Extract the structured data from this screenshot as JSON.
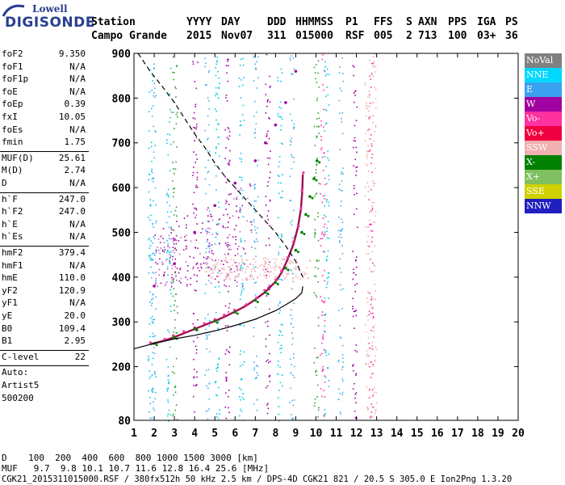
{
  "logo": {
    "line1": "Lowell",
    "line2": "DIGISONDE"
  },
  "header": {
    "labels": [
      "Station",
      "YYYY",
      "DAY",
      "DDD",
      "HHMMSS",
      "P1",
      "FFS",
      "S",
      "AXN",
      "PPS",
      "IGA",
      "PS"
    ],
    "values": [
      "Campo Grande",
      "2015",
      "Nov07",
      "311",
      "015000",
      "RSF",
      "005",
      "2",
      "713",
      "100",
      "03+",
      "36"
    ]
  },
  "params": {
    "group1": [
      [
        "foF2",
        "9.350"
      ],
      [
        "foF1",
        "N/A"
      ],
      [
        "foF1p",
        "N/A"
      ],
      [
        "foE",
        "N/A"
      ],
      [
        "foEp",
        "0.39"
      ],
      [
        "fxI",
        "10.05"
      ],
      [
        "foEs",
        "N/A"
      ],
      [
        "fmin",
        "1.75"
      ]
    ],
    "group2": [
      [
        "MUF(D)",
        "25.61"
      ],
      [
        "M(D)",
        "2.74"
      ],
      [
        "D",
        "N/A"
      ]
    ],
    "group3": [
      [
        "h`F",
        "247.0"
      ],
      [
        "h`F2",
        "247.0"
      ],
      [
        "h`E",
        "N/A"
      ],
      [
        "h`Es",
        "N/A"
      ]
    ],
    "group4": [
      [
        "hmF2",
        "379.4"
      ],
      [
        "hmF1",
        "N/A"
      ],
      [
        "hmE",
        "110.0"
      ],
      [
        "yF2",
        "120.9"
      ],
      [
        "yF1",
        "N/A"
      ],
      [
        "yE",
        "20.0"
      ],
      [
        "B0",
        "109.4"
      ],
      [
        "B1",
        "2.95"
      ]
    ],
    "clevel": [
      "C-level",
      "22"
    ],
    "auto": [
      "Auto:",
      "Artist5",
      "500200"
    ]
  },
  "legend": [
    {
      "label": "NoVal",
      "color": "#808080"
    },
    {
      "label": "NNE",
      "color": "#00d8ff"
    },
    {
      "label": "E",
      "color": "#3aa0f0"
    },
    {
      "label": "W",
      "color": "#a000a0"
    },
    {
      "label": "Vo-",
      "color": "#ff30a0"
    },
    {
      "label": "Vo+",
      "color": "#f00040"
    },
    {
      "label": "SSW",
      "color": "#f0b0b0"
    },
    {
      "label": "X-",
      "color": "#008000"
    },
    {
      "label": "X+",
      "color": "#80c060"
    },
    {
      "label": "SSE",
      "color": "#d0d000"
    },
    {
      "label": "NNW",
      "color": "#2020c0"
    }
  ],
  "bottom": {
    "d_row": "D    100  200  400  600  800 1000 1500 3000 [km]",
    "muf_row": "MUF   9.7  9.8 10.1 10.7 11.6 12.8 16.4 25.6 [MHz]",
    "footer": "CGK21_2015311015000.RSF / 380fx512h 50 kHz 2.5 km / DPS-4D CGK21 821 / 20.5 S 305.0 E Ion2Png 1.3.20"
  },
  "chart_data": {
    "type": "scatter",
    "xlim": [
      1,
      20
    ],
    "ylim": [
      80,
      900
    ],
    "xticks": [
      1,
      2,
      3,
      4,
      5,
      6,
      7,
      8,
      9,
      10,
      11,
      12,
      13,
      14,
      15,
      16,
      17,
      18,
      19,
      20
    ],
    "yticks": [
      80,
      200,
      300,
      400,
      500,
      600,
      700,
      800,
      900
    ],
    "grid": false,
    "legend_position": "right",
    "series": [
      {
        "role": "o-trace",
        "color": "#a01050",
        "x": [
          1.8,
          2.5,
          3.0,
          3.5,
          4.0,
          4.5,
          5.0,
          5.5,
          6.0,
          6.5,
          7.0,
          7.5,
          8.0,
          8.3,
          8.6,
          8.9,
          9.1,
          9.25,
          9.32,
          9.35
        ],
        "y": [
          250,
          258,
          266,
          275,
          284,
          293,
          302,
          312,
          323,
          335,
          350,
          367,
          390,
          410,
          440,
          475,
          510,
          550,
          590,
          630
        ]
      },
      {
        "role": "x-trace",
        "color": "#008000",
        "x": [
          2.0,
          3.0,
          4.0,
          5.0,
          6.0,
          7.0,
          7.5,
          8.0,
          8.5,
          9.0,
          9.3,
          9.5,
          9.7,
          9.9,
          10.05
        ],
        "y": [
          252,
          266,
          285,
          302,
          322,
          348,
          366,
          388,
          420,
          460,
          500,
          540,
          580,
          620,
          660
        ]
      },
      {
        "role": "profile",
        "color": "#000000",
        "x": [
          1.0,
          2.0,
          3.0,
          4.0,
          5.0,
          6.0,
          7.0,
          8.0,
          8.5,
          9.0,
          9.3,
          9.35
        ],
        "y": [
          240,
          252,
          262,
          270,
          280,
          292,
          306,
          325,
          338,
          352,
          365,
          379.4
        ]
      },
      {
        "role": "model-dashed",
        "color": "#000000",
        "x": [
          1.2,
          1.8,
          2.5,
          3.0,
          3.5,
          4.0,
          4.5,
          5.0,
          5.5,
          6.0,
          6.5,
          7.0,
          7.5,
          8.0,
          8.5,
          9.0,
          9.35
        ],
        "y": [
          900,
          860,
          820,
          790,
          755,
          720,
          690,
          655,
          625,
          600,
          575,
          550,
          525,
          500,
          470,
          435,
          400
        ]
      },
      {
        "role": "spread-F-trace",
        "color": "#a000a0",
        "x": [
          2.0,
          3.0,
          4.0,
          5.0,
          6.0,
          7.0,
          7.5,
          8.0,
          8.5,
          9.0
        ],
        "y": [
          380,
          430,
          500,
          560,
          610,
          660,
          700,
          740,
          790,
          860
        ]
      }
    ]
  }
}
